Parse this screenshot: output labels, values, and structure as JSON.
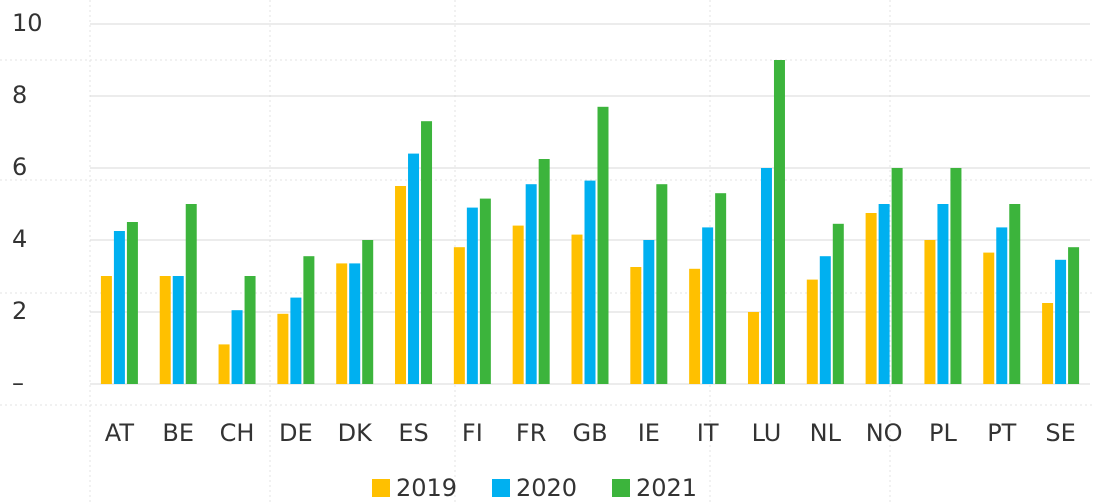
{
  "chart_data": {
    "type": "bar",
    "categories": [
      "AT",
      "BE",
      "CH",
      "DE",
      "DK",
      "ES",
      "FI",
      "FR",
      "GB",
      "IE",
      "IT",
      "LU",
      "NL",
      "NO",
      "PL",
      "PT",
      "SE"
    ],
    "series": [
      {
        "name": "2019",
        "color": "#ffc000",
        "values": [
          3.0,
          3.0,
          1.1,
          1.95,
          3.35,
          5.5,
          3.8,
          4.4,
          4.15,
          3.25,
          3.2,
          2.0,
          2.9,
          4.75,
          4.0,
          3.65,
          2.25
        ]
      },
      {
        "name": "2020",
        "color": "#00b0f0",
        "values": [
          4.25,
          3.0,
          2.05,
          2.4,
          3.35,
          6.4,
          4.9,
          5.55,
          5.65,
          4.0,
          4.35,
          6.0,
          3.55,
          5.0,
          5.0,
          4.35,
          3.45
        ]
      },
      {
        "name": "2021",
        "color": "#3cb43c",
        "values": [
          4.5,
          5.0,
          3.0,
          3.55,
          4.0,
          7.3,
          5.15,
          6.25,
          7.7,
          5.55,
          5.3,
          9.0,
          4.45,
          6.0,
          6.0,
          5.0,
          3.8
        ]
      }
    ],
    "ylim": [
      0,
      10
    ],
    "yticks": [
      {
        "value": 0,
        "label": "–"
      },
      2,
      4,
      6,
      8,
      10
    ],
    "grid": true,
    "legend": "bottom"
  }
}
